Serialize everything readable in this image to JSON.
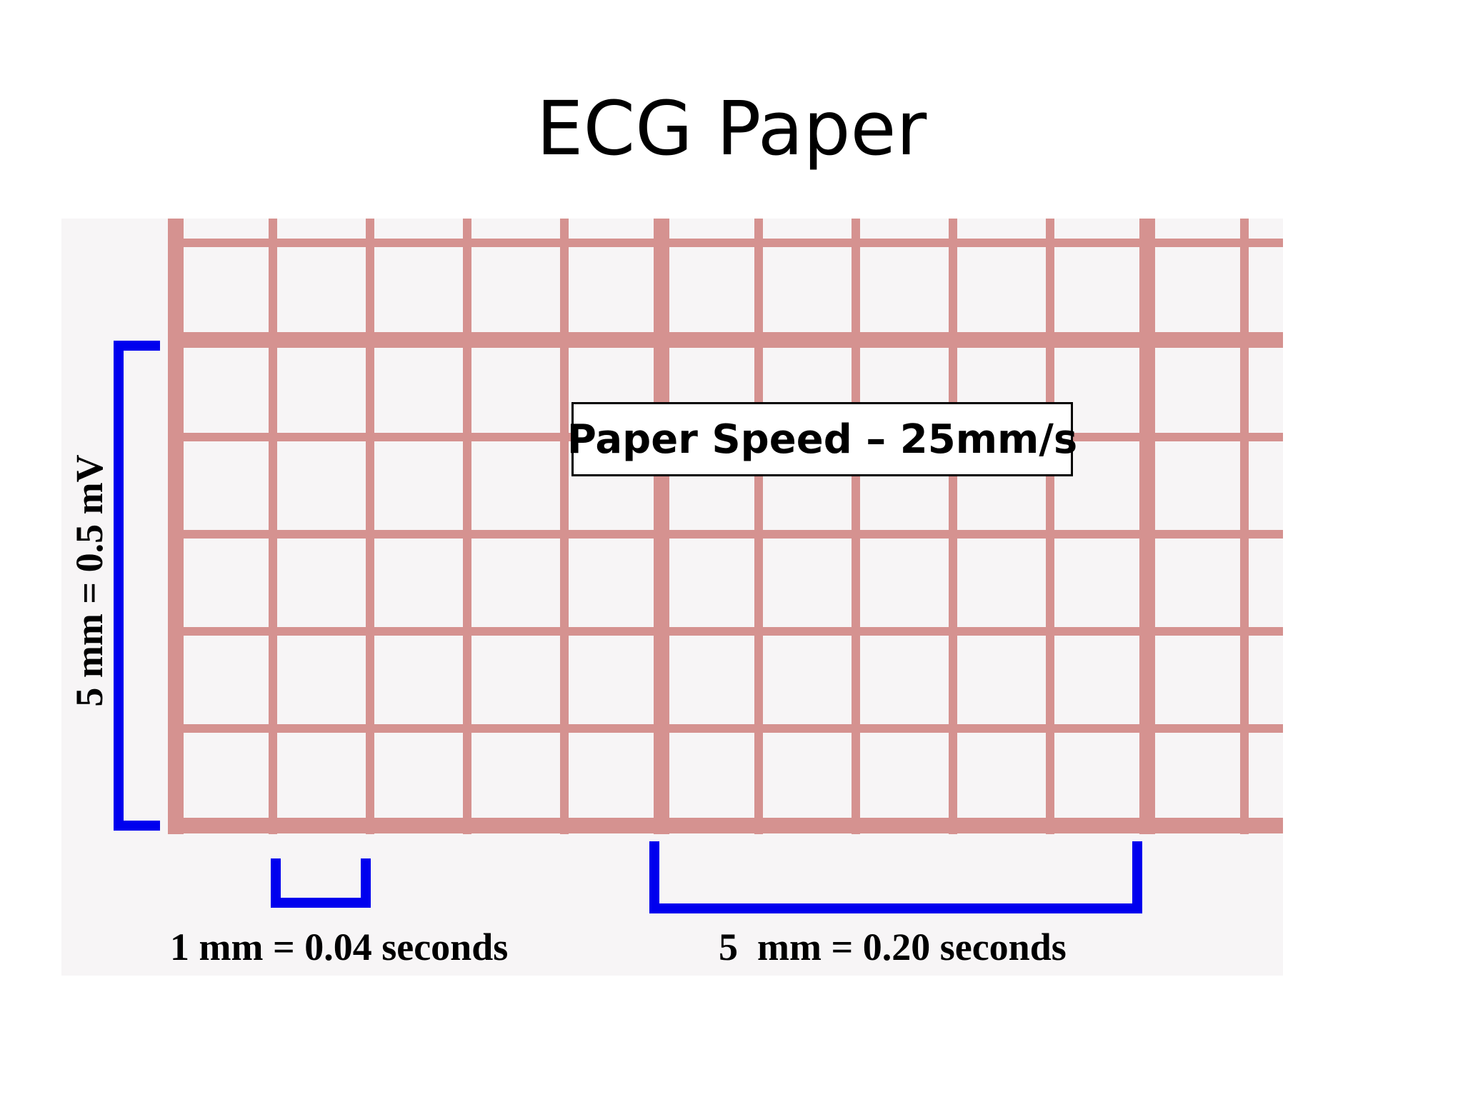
{
  "title": "ECG Paper",
  "diagram": {
    "paper_speed_label": "Paper Speed – 25mm/s",
    "vertical_label": "5 mm = 0.5 mV",
    "small_box_label": "1 mm = 0.04 seconds",
    "large_box_label": "5  mm = 0.20 seconds",
    "colors": {
      "grid_line": "#d59290",
      "bracket": "#0000ee",
      "paper_background": "#f7f5f6"
    }
  }
}
